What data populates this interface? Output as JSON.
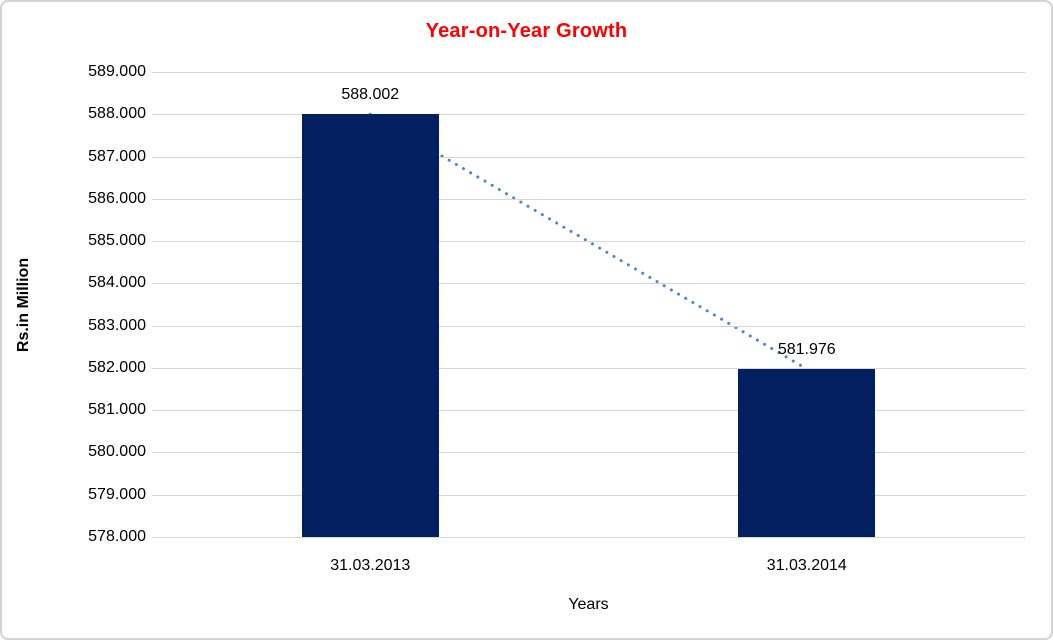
{
  "chart_data": {
    "type": "bar",
    "title": "Year-on-Year Growth",
    "xlabel": "Years",
    "ylabel": "Rs.in Million",
    "categories": [
      "31.03.2013",
      "31.03.2014"
    ],
    "values": [
      588.002,
      581.976
    ],
    "value_labels": [
      "588.002",
      "581.976"
    ],
    "y_tick_labels": [
      "589.000",
      "588.000",
      "587.000",
      "586.000",
      "585.000",
      "584.000",
      "583.000",
      "582.000",
      "581.000",
      "580.000",
      "579.000",
      "578.000"
    ],
    "ylim": [
      578,
      589
    ],
    "y_tick_step": 1,
    "grid": "horizontal",
    "legend": "none",
    "trendline": {
      "style": "dotted",
      "from_value": 588.002,
      "to_value": 581.976,
      "color": "#4f86c6"
    },
    "colors": {
      "bar_fill": "#022060",
      "title_text": "#ff0000",
      "gridline": "#d6d6d6",
      "trendline": "#4f86c6",
      "label_text": "#000000",
      "frame_border": "#d3d3d3"
    }
  }
}
